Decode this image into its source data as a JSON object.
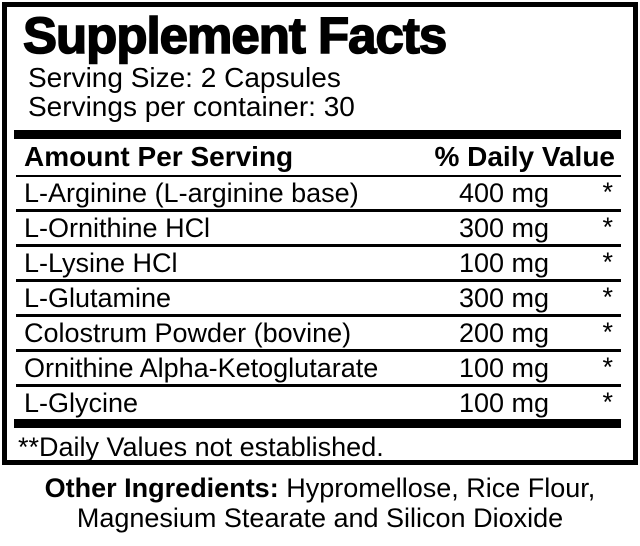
{
  "label": {
    "title": "Supplement Facts",
    "serving_size": "Serving Size: 2 Capsules",
    "servings_per_container": "Servings per container: 30",
    "header": {
      "amount_col": "Amount Per Serving",
      "dv_col": "% Daily Value"
    },
    "rows": [
      {
        "name": "L-Arginine (L-arginine base)",
        "amount": "400 mg",
        "dv": "*"
      },
      {
        "name": "L-Ornithine HCl",
        "amount": "300 mg",
        "dv": "*"
      },
      {
        "name": "L-Lysine HCl",
        "amount": "100 mg",
        "dv": "*"
      },
      {
        "name": "L-Glutamine",
        "amount": "300 mg",
        "dv": "*"
      },
      {
        "name": "Colostrum Powder (bovine)",
        "amount": "200 mg",
        "dv": "*"
      },
      {
        "name": "Ornithine Alpha-Ketoglutarate",
        "amount": "100 mg",
        "dv": "*"
      },
      {
        "name": "L-Glycine",
        "amount": "100 mg",
        "dv": "*"
      }
    ],
    "footnote": "**Daily Values not established.",
    "other_ingredients": {
      "label": "Other Ingredients:",
      "line1_rest": " Hypromellose, Rice Flour,",
      "line2": "Magnesium Stearate and Silicon Dioxide"
    },
    "colors": {
      "text": "#000000",
      "background": "#ffffff"
    }
  }
}
